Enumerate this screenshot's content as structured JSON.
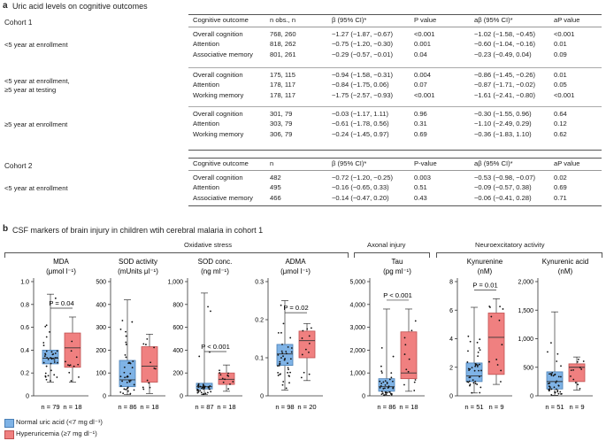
{
  "panel_a": {
    "letter": "a",
    "title": "Uric acid levels on cognitive outcomes",
    "cohorts": [
      {
        "name": "Cohort 1",
        "headers": [
          "Cognitive outcome",
          "n obs., n",
          "β (95% CI)*",
          "P value",
          "aβ (95% CI)*",
          "aP value"
        ],
        "groups": [
          {
            "label": "<5 year at enrollment",
            "rows": [
              [
                "Overall cognition",
                "768, 260",
                "−1.27 (−1.87, −0.67)",
                "<0.001",
                "−1.02 (−1.58, −0.45)",
                "<0.001"
              ],
              [
                "Attention",
                "818, 262",
                "−0.75 (−1.20, −0.30)",
                "0.001",
                "−0.60 (−1.04, −0.16)",
                "0.01"
              ],
              [
                "Associative memory",
                "801, 261",
                "−0.29 (−0.57, −0.01)",
                "0.04",
                "−0.23 (−0.49, 0.04)",
                "0.09"
              ]
            ]
          },
          {
            "label": "<5 year at enrollment,",
            "label2": "≥5 year at testing",
            "rows": [
              [
                "Overall cognition",
                "175, 115",
                "−0.94 (−1.58, −0.31)",
                "0.004",
                "−0.86 (−1.45, −0.26)",
                "0.01"
              ],
              [
                "Attention",
                "178, 117",
                "−0.84 (−1.75, 0.06)",
                "0.07",
                "−0.87 (−1.71, −0.02)",
                "0.05"
              ],
              [
                "Working memory",
                "178, 117",
                "−1.75 (−2.57, −0.93)",
                "<0.001",
                "−1.61 (−2.41, −0.80)",
                "<0.001"
              ]
            ]
          },
          {
            "label": "≥5 year at enrollment",
            "rows": [
              [
                "Overall cognition",
                "301, 79",
                "−0.03 (−1.17, 1.11)",
                "0.96",
                "−0.30 (−1.55, 0.96)",
                "0.64"
              ],
              [
                "Attention",
                "303, 79",
                "−0.61 (−1.78, 0.56)",
                "0.31",
                "−1.10 (−2.49, 0.29)",
                "0.12"
              ],
              [
                "Working memory",
                "306, 79",
                "−0.24 (−1.45, 0.97)",
                "0.69",
                "−0.36 (−1.83, 1.10)",
                "0.62"
              ]
            ]
          }
        ]
      },
      {
        "name": "Cohort 2",
        "headers": [
          "Cognitive outcome",
          "n",
          "β (95% CI)*",
          "P-value",
          "aβ (95% CI)*",
          "aP value"
        ],
        "groups": [
          {
            "label": "<5 year at enrollment",
            "rows": [
              [
                "Overall cognition",
                "482",
                "−0.72 (−1.20, −0.25)",
                "0.003",
                "−0.53 (−0.98, −0.07)",
                "0.02"
              ],
              [
                "Attention",
                "495",
                "−0.16 (−0.65, 0.33)",
                "0.51",
                "−0.09 (−0.57, 0.38)",
                "0.69"
              ],
              [
                "Associative memory",
                "466",
                "−0.14 (−0.47, 0.20)",
                "0.43",
                "−0.06 (−0.41, 0.28)",
                "0.71"
              ]
            ]
          }
        ]
      }
    ]
  },
  "panel_b": {
    "letter": "b",
    "title": "CSF markers of brain injury in children wtih cerebral malaria in cohort 1",
    "categories": [
      {
        "label": "Oxidative stress"
      },
      {
        "label": "Axonal injury"
      },
      {
        "label": "Neuroexcitatory activity"
      }
    ],
    "legend": [
      {
        "label": "Normal uric acid (<7 mg dl⁻¹)",
        "color": "#7fb3e6"
      },
      {
        "label": "Hyperuricemia (≥7 mg dl⁻¹)",
        "color": "#f08080"
      }
    ]
  },
  "chart_data": [
    {
      "type": "box",
      "title": "MDA",
      "ylabel": "(μmol l⁻¹)",
      "yticks": [
        "0",
        "0.2",
        "0.4",
        "0.6",
        "0.8",
        "1.0"
      ],
      "ylim": [
        0,
        1.0
      ],
      "groups": [
        "Normal uric acid",
        "Hyperuricemia"
      ],
      "boxes": [
        {
          "q1": 0.28,
          "median": 0.33,
          "q3": 0.4,
          "whisker_low": 0.12,
          "whisker_high": 0.89,
          "n_label": "n = 79"
        },
        {
          "q1": 0.25,
          "median": 0.42,
          "q3": 0.55,
          "whisker_low": 0.12,
          "whisker_high": 0.69,
          "n_label": "n = 18"
        }
      ],
      "annotation": "P = 0.04"
    },
    {
      "type": "box",
      "title": "SOD activity",
      "ylabel": "(mUnits μl⁻¹)",
      "yticks": [
        "0",
        "100",
        "200",
        "300",
        "400",
        "500"
      ],
      "ylim": [
        0,
        500
      ],
      "groups": [
        "Normal uric acid",
        "Hyperuricemia"
      ],
      "boxes": [
        {
          "q1": 40,
          "median": 70,
          "q3": 155,
          "whisker_low": 5,
          "whisker_high": 420,
          "n_label": "n = 86"
        },
        {
          "q1": 60,
          "median": 130,
          "q3": 215,
          "whisker_low": 10,
          "whisker_high": 270,
          "n_label": "n = 18"
        }
      ],
      "annotation": ""
    },
    {
      "type": "box",
      "title": "SOD conc.",
      "ylabel": "(ng ml⁻¹)",
      "yticks": [
        "0",
        "200",
        "400",
        "600",
        "800",
        "1,000"
      ],
      "ylim": [
        0,
        1000
      ],
      "groups": [
        "Normal uric acid",
        "Hyperuricemia"
      ],
      "boxes": [
        {
          "q1": 60,
          "median": 80,
          "q3": 110,
          "whisker_low": 10,
          "whisker_high": 900,
          "n_label": "n = 87"
        },
        {
          "q1": 100,
          "median": 145,
          "q3": 200,
          "whisker_low": 40,
          "whisker_high": 270,
          "n_label": "n = 18"
        }
      ],
      "annotation": "P < 0.001"
    },
    {
      "type": "box",
      "title": "ADMA",
      "ylabel": "(μmol l⁻¹)",
      "yticks": [
        "0",
        "0.1",
        "0.2",
        "0.3"
      ],
      "ylim": [
        0,
        0.3
      ],
      "groups": [
        "Normal uric acid",
        "Hyperuricemia"
      ],
      "boxes": [
        {
          "q1": 0.08,
          "median": 0.11,
          "q3": 0.135,
          "whisker_low": 0.015,
          "whisker_high": 0.25,
          "n_label": "n = 98"
        },
        {
          "q1": 0.1,
          "median": 0.145,
          "q3": 0.17,
          "whisker_low": 0.04,
          "whisker_high": 0.19,
          "n_label": "n = 20"
        }
      ],
      "annotation": "P = 0.02"
    },
    {
      "type": "box",
      "title": "Tau",
      "ylabel": "(pg ml⁻¹)",
      "yticks": [
        "0",
        "1,000",
        "2,000",
        "3,000",
        "4,000",
        "5,000"
      ],
      "ylim": [
        0,
        5000
      ],
      "groups": [
        "Normal uric acid",
        "Hyperuricemia"
      ],
      "boxes": [
        {
          "q1": 200,
          "median": 400,
          "q3": 750,
          "whisker_low": 20,
          "whisker_high": 3800,
          "n_label": "n = 86"
        },
        {
          "q1": 750,
          "median": 1000,
          "q3": 2800,
          "whisker_low": 200,
          "whisker_high": 3800,
          "n_label": "n = 18"
        }
      ],
      "annotation": "P < 0.001"
    },
    {
      "type": "box",
      "title": "Kynurenine",
      "ylabel": "(nM)",
      "yticks": [
        "0",
        "2",
        "4",
        "6",
        "8"
      ],
      "ylim": [
        0,
        8
      ],
      "groups": [
        "Normal uric acid",
        "Hyperuricemia"
      ],
      "boxes": [
        {
          "q1": 1.0,
          "median": 1.4,
          "q3": 2.3,
          "whisker_low": 0.2,
          "whisker_high": 6.2,
          "n_label": "n = 51"
        },
        {
          "q1": 1.5,
          "median": 4.1,
          "q3": 5.8,
          "whisker_low": 0.8,
          "whisker_high": 6.8,
          "n_label": "n = 9"
        }
      ],
      "annotation": "P = 0.01"
    },
    {
      "type": "box",
      "title": "Kynurenic acid",
      "ylabel": "(nM)",
      "yticks": [
        "0",
        "500",
        "1,000",
        "1,500",
        "2,000"
      ],
      "ylim": [
        0,
        2000
      ],
      "groups": [
        "Normal uric acid",
        "Hyperuricemia"
      ],
      "boxes": [
        {
          "q1": 120,
          "median": 250,
          "q3": 420,
          "whisker_low": 10,
          "whisker_high": 1470,
          "n_label": "n = 51"
        },
        {
          "q1": 250,
          "median": 500,
          "q3": 560,
          "whisker_low": 100,
          "whisker_high": 680,
          "n_label": "n = 9"
        }
      ],
      "annotation": ""
    }
  ]
}
